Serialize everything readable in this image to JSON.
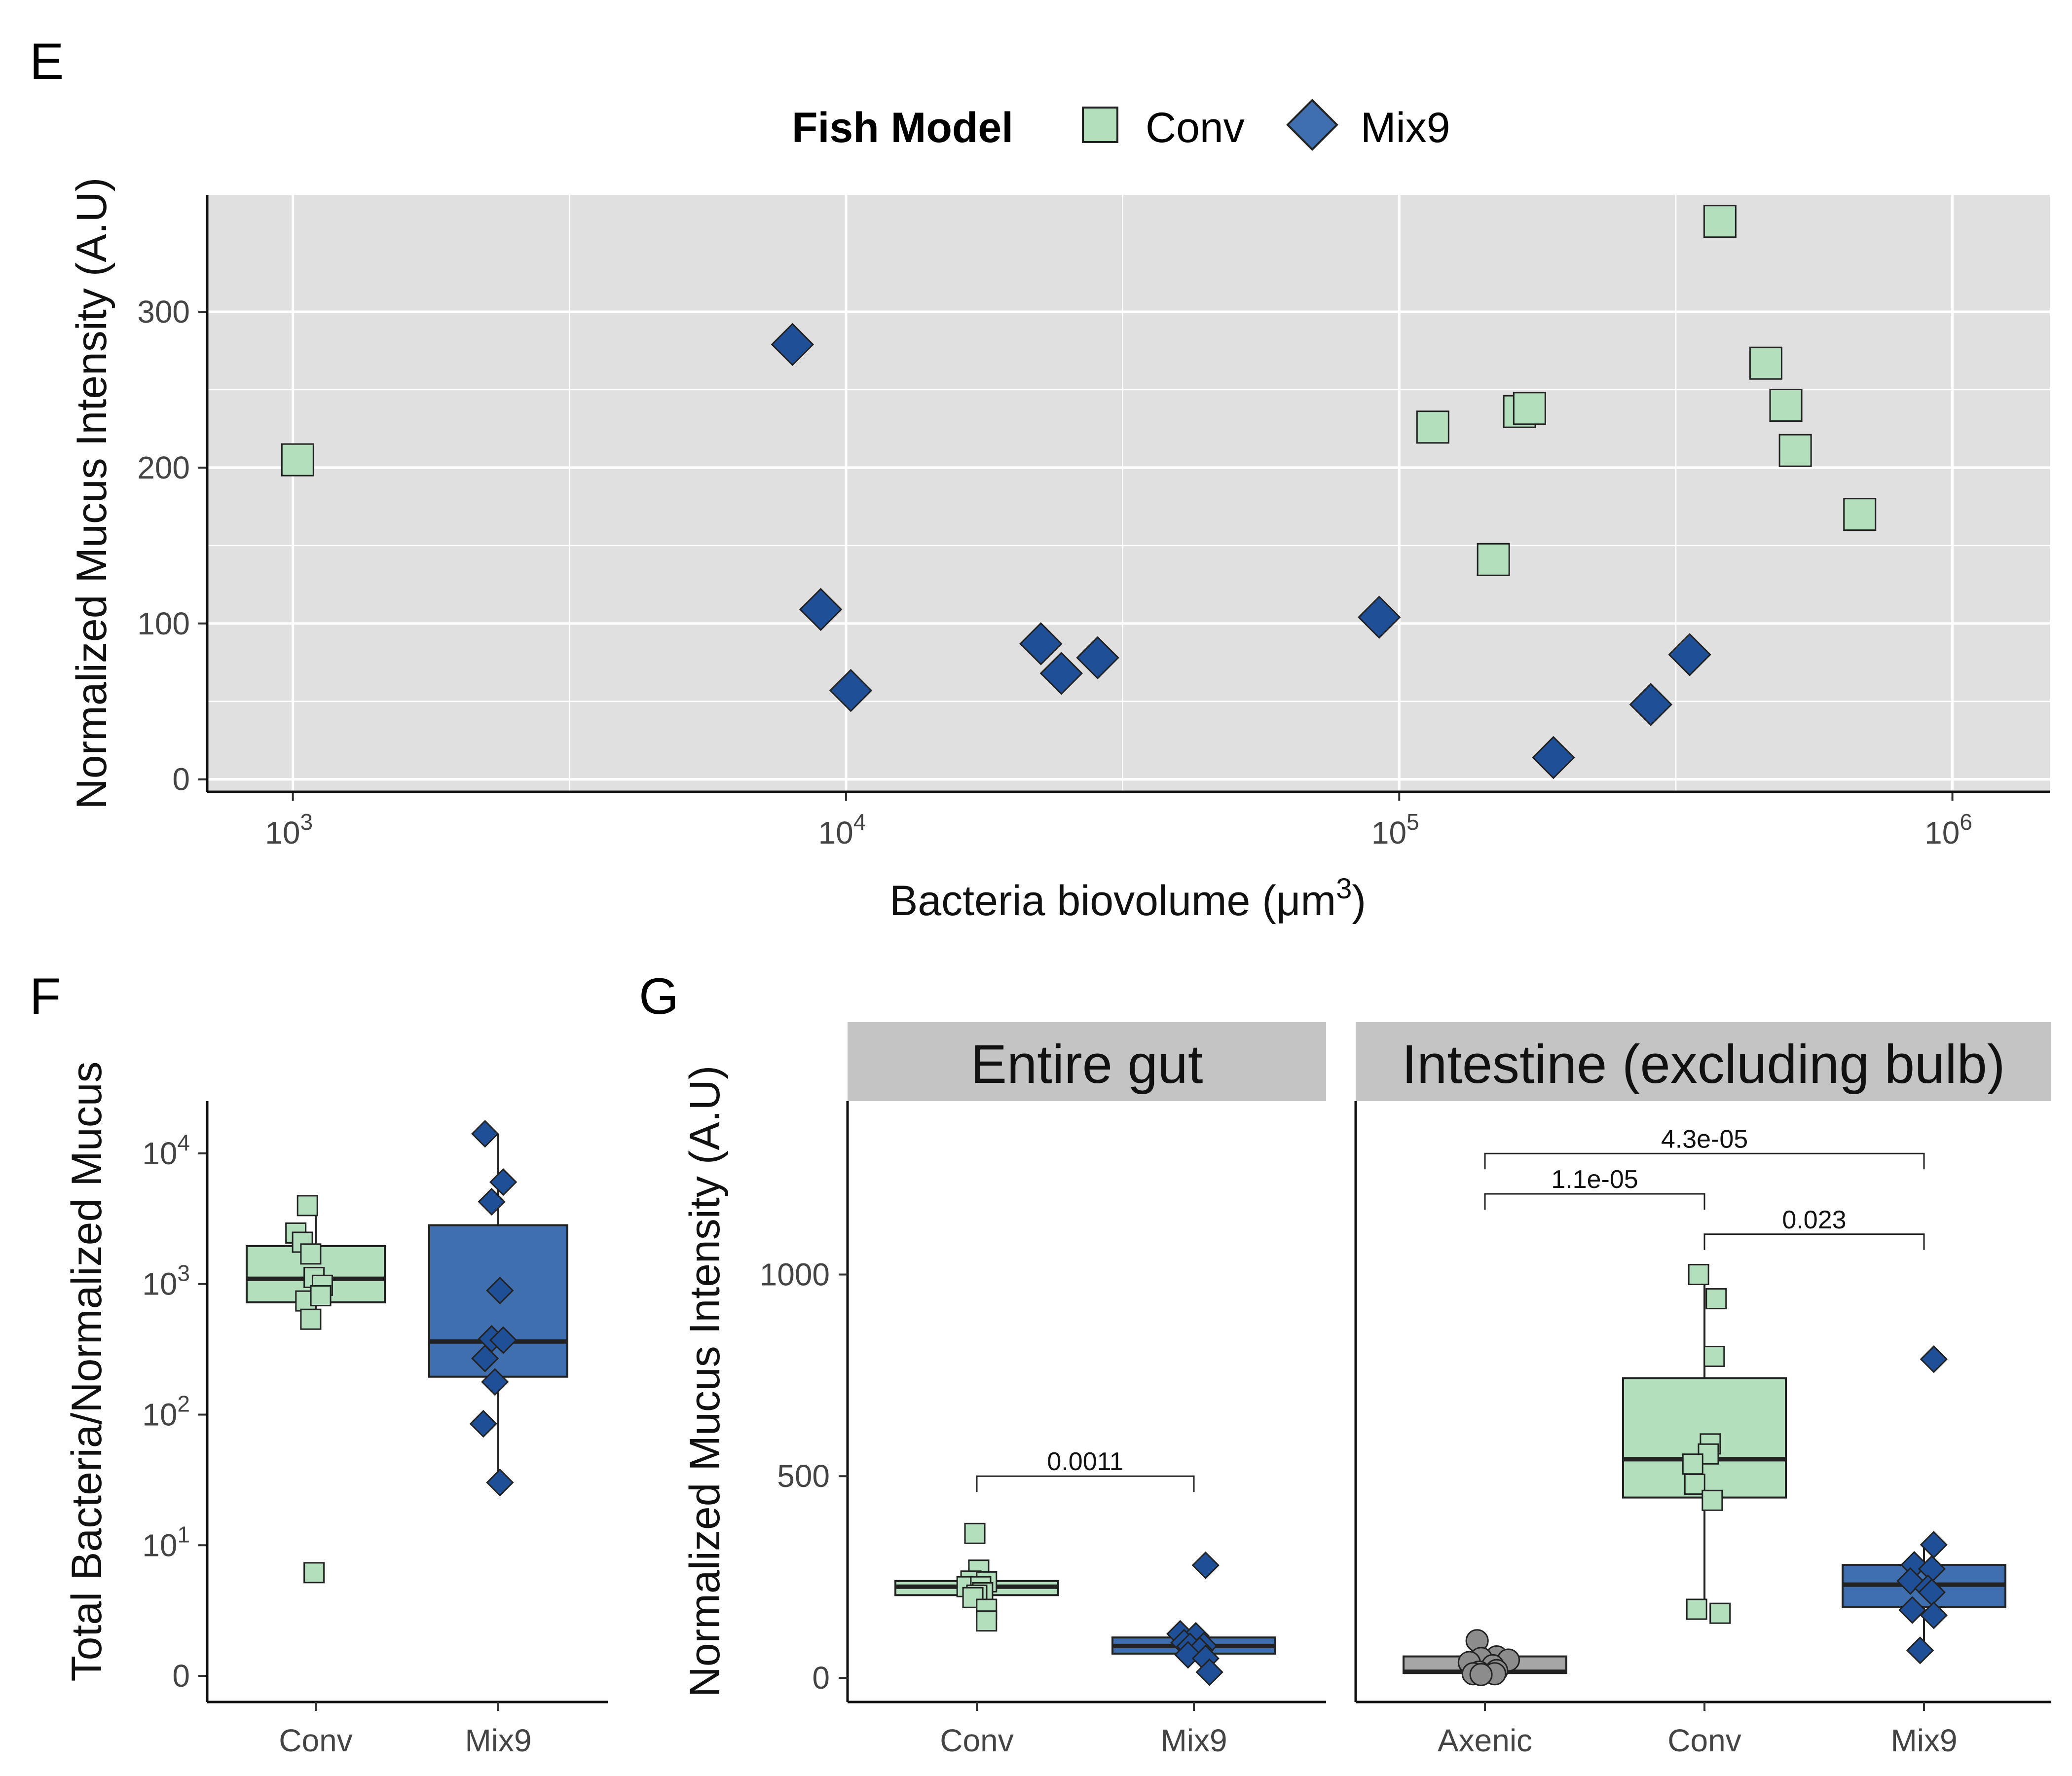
{
  "colors": {
    "conv_fill": "#b4dfbd",
    "mix9_fill": "#3f6fae",
    "mix9_point": "#1f4f96",
    "axenic_fill": "#a6a6a6",
    "axenic_point": "#8c8c8c",
    "panel_bg": "#e0e0e0",
    "strip_bg": "#c4c4c4"
  },
  "legend": {
    "title": "Fish Model",
    "entries": [
      {
        "label": "Conv",
        "shape": "square-icon"
      },
      {
        "label": "Mix9",
        "shape": "diamond-icon"
      }
    ]
  },
  "chart_data": [
    {
      "panel": "E",
      "type": "scatter",
      "xlabel_main": "Bacteria biovolume (μm",
      "xlabel_sup": "3",
      "xlabel_close": ")",
      "ylabel": "Normalized Mucus Intensity (A.U)",
      "x_scale": "log10",
      "xlim": [
        700,
        1500000
      ],
      "ylim": [
        -8,
        375
      ],
      "x_ticks": [
        {
          "value": 1000,
          "base": "10",
          "exp": "3"
        },
        {
          "value": 10000,
          "base": "10",
          "exp": "4"
        },
        {
          "value": 100000,
          "base": "10",
          "exp": "5"
        },
        {
          "value": 1000000,
          "base": "10",
          "exp": "6"
        }
      ],
      "y_ticks": [
        0,
        100,
        200,
        300
      ],
      "grid": true,
      "series": [
        {
          "name": "Conv",
          "points": [
            [
              1020,
              205
            ],
            [
              115000,
              226
            ],
            [
              148000,
              141
            ],
            [
              165000,
              236
            ],
            [
              172000,
              238
            ],
            [
              380000,
              358
            ],
            [
              460000,
              267
            ],
            [
              500000,
              240
            ],
            [
              520000,
              211
            ],
            [
              680000,
              170
            ]
          ]
        },
        {
          "name": "Mix9",
          "points": [
            [
              8000,
              279
            ],
            [
              9000,
              109
            ],
            [
              10200,
              57
            ],
            [
              22500,
              87
            ],
            [
              24500,
              68
            ],
            [
              28500,
              78
            ],
            [
              92000,
              104
            ],
            [
              190000,
              14
            ],
            [
              285000,
              48
            ],
            [
              335000,
              80
            ]
          ]
        }
      ]
    },
    {
      "panel": "F",
      "type": "box",
      "ylabel": "Total Bacteria/Normalized Mucus",
      "y_scale": "pseudo-log10",
      "ylim": [
        -0.2,
        4.4
      ],
      "y_ticks": [
        {
          "value": 0,
          "base": "0",
          "exp": ""
        },
        {
          "value": 1,
          "base": "10",
          "exp": "1"
        },
        {
          "value": 2,
          "base": "10",
          "exp": "2"
        },
        {
          "value": 3,
          "base": "10",
          "exp": "3"
        },
        {
          "value": 4,
          "base": "10",
          "exp": "4"
        }
      ],
      "categories": [
        "Conv",
        "Mix9"
      ],
      "boxes": [
        {
          "name": "Conv",
          "q1": 2.86,
          "median": 3.04,
          "q3": 3.29,
          "whisker_low": 2.72,
          "whisker_high": 3.6,
          "points": [
            [
              -0.05,
              3.6
            ],
            [
              -0.12,
              3.39
            ],
            [
              -0.08,
              3.32
            ],
            [
              -0.03,
              3.23
            ],
            [
              -0.01,
              3.05
            ],
            [
              0.04,
              2.99
            ],
            [
              -0.06,
              2.87
            ],
            [
              0.03,
              2.91
            ],
            [
              -0.03,
              2.73
            ],
            [
              -0.01,
              0.79
            ]
          ]
        },
        {
          "name": "Mix9",
          "q1": 2.29,
          "median": 2.56,
          "q3": 3.45,
          "whisker_low": 1.48,
          "whisker_high": 4.15,
          "points": [
            [
              -0.08,
              4.15
            ],
            [
              0.03,
              3.78
            ],
            [
              -0.04,
              3.63
            ],
            [
              0.01,
              2.95
            ],
            [
              -0.04,
              2.58
            ],
            [
              0.03,
              2.57
            ],
            [
              -0.08,
              2.43
            ],
            [
              -0.02,
              2.25
            ],
            [
              -0.09,
              1.93
            ],
            [
              0.01,
              1.48
            ]
          ]
        }
      ]
    },
    {
      "panel": "G",
      "type": "box",
      "ylabel": "Normalized Mucus Intensity (A.U)",
      "ylim": [
        -60,
        1430
      ],
      "y_ticks": [
        0,
        500,
        1000
      ],
      "facets": [
        {
          "strip": "Entire gut",
          "categories": [
            "Conv",
            "Mix9"
          ],
          "boxes": [
            {
              "name": "Conv",
              "q1": 205,
              "median": 226,
              "q3": 240,
              "whisker_low": 180,
              "whisker_high": 267,
              "points": [
                [
                  -0.01,
                  358
                ],
                [
                  0.01,
                  267
                ],
                [
                  -0.03,
                  240
                ],
                [
                  0.05,
                  238
                ],
                [
                  -0.05,
                  226
                ],
                [
                  0.02,
                  226
                ],
                [
                  0.03,
                  211
                ],
                [
                  0,
                  205
                ],
                [
                  -0.02,
                  199
                ],
                [
                  0.05,
                  170
                ],
                [
                  0.05,
                  141
                ]
              ]
            },
            {
              "name": "Mix9",
              "q1": 60,
              "median": 79,
              "q3": 100,
              "whisker_low": 48,
              "whisker_high": 109,
              "points": [
                [
                  0.06,
                  279
                ],
                [
                  -0.07,
                  109
                ],
                [
                  0.01,
                  104
                ],
                [
                  -0.05,
                  87
                ],
                [
                  0.05,
                  79
                ],
                [
                  -0.02,
                  78
                ],
                [
                  0.03,
                  68
                ],
                [
                  -0.03,
                  57
                ],
                [
                  0.06,
                  48
                ],
                [
                  0.08,
                  14
                ]
              ]
            }
          ],
          "comparisons": [
            {
              "from": "Conv",
              "to": "Mix9",
              "label": "0.0011",
              "y": 500
            }
          ]
        },
        {
          "strip": "Intestine (excluding bulb)",
          "categories": [
            "Axenic",
            "Conv",
            "Mix9"
          ],
          "boxes": [
            {
              "name": "Axenic",
              "q1": 12,
              "median": 15,
              "q3": 53,
              "whisker_low": 8,
              "whisker_high": 92,
              "points": [
                [
                  -0.04,
                  92
                ],
                [
                  0.06,
                  52
                ],
                [
                  -0.02,
                  48
                ],
                [
                  0.12,
                  44
                ],
                [
                  -0.08,
                  38
                ],
                [
                  0.04,
                  30
                ],
                [
                  0.06,
                  18
                ],
                [
                  -0.03,
                  14
                ],
                [
                  -0.06,
                  10
                ],
                [
                  0.05,
                  10
                ],
                [
                  -0.02,
                  8
                ]
              ]
            },
            {
              "name": "Conv",
              "q1": 447,
              "median": 542,
              "q3": 743,
              "whisker_low": 160,
              "whisker_high": 1000,
              "points": [
                [
                  -0.03,
                  1000
                ],
                [
                  0.06,
                  940
                ],
                [
                  0.05,
                  797
                ],
                [
                  0.03,
                  580
                ],
                [
                  0.02,
                  555
                ],
                [
                  -0.06,
                  530
                ],
                [
                  -0.05,
                  480
                ],
                [
                  0.04,
                  440
                ],
                [
                  -0.04,
                  170
                ],
                [
                  0.08,
                  160
                ]
              ]
            },
            {
              "name": "Mix9",
              "q1": 175,
              "median": 231,
              "q3": 280,
              "whisker_low": 60,
              "whisker_high": 330,
              "points": [
                [
                  0.05,
                  790
                ],
                [
                  0.05,
                  330
                ],
                [
                  -0.05,
                  280
                ],
                [
                  0.04,
                  270
                ],
                [
                  -0.07,
                  240
                ],
                [
                  0.02,
                  222
                ],
                [
                  0.04,
                  212
                ],
                [
                  -0.06,
                  168
                ],
                [
                  0.05,
                  155
                ],
                [
                  -0.02,
                  68
                ]
              ]
            }
          ],
          "comparisons": [
            {
              "from": "Axenic",
              "to": "Mix9",
              "label": "4.3e-05",
              "y": 1300
            },
            {
              "from": "Axenic",
              "to": "Conv",
              "label": "1.1e-05",
              "y": 1200
            },
            {
              "from": "Conv",
              "to": "Mix9",
              "label": "0.023",
              "y": 1100
            }
          ]
        }
      ]
    }
  ]
}
